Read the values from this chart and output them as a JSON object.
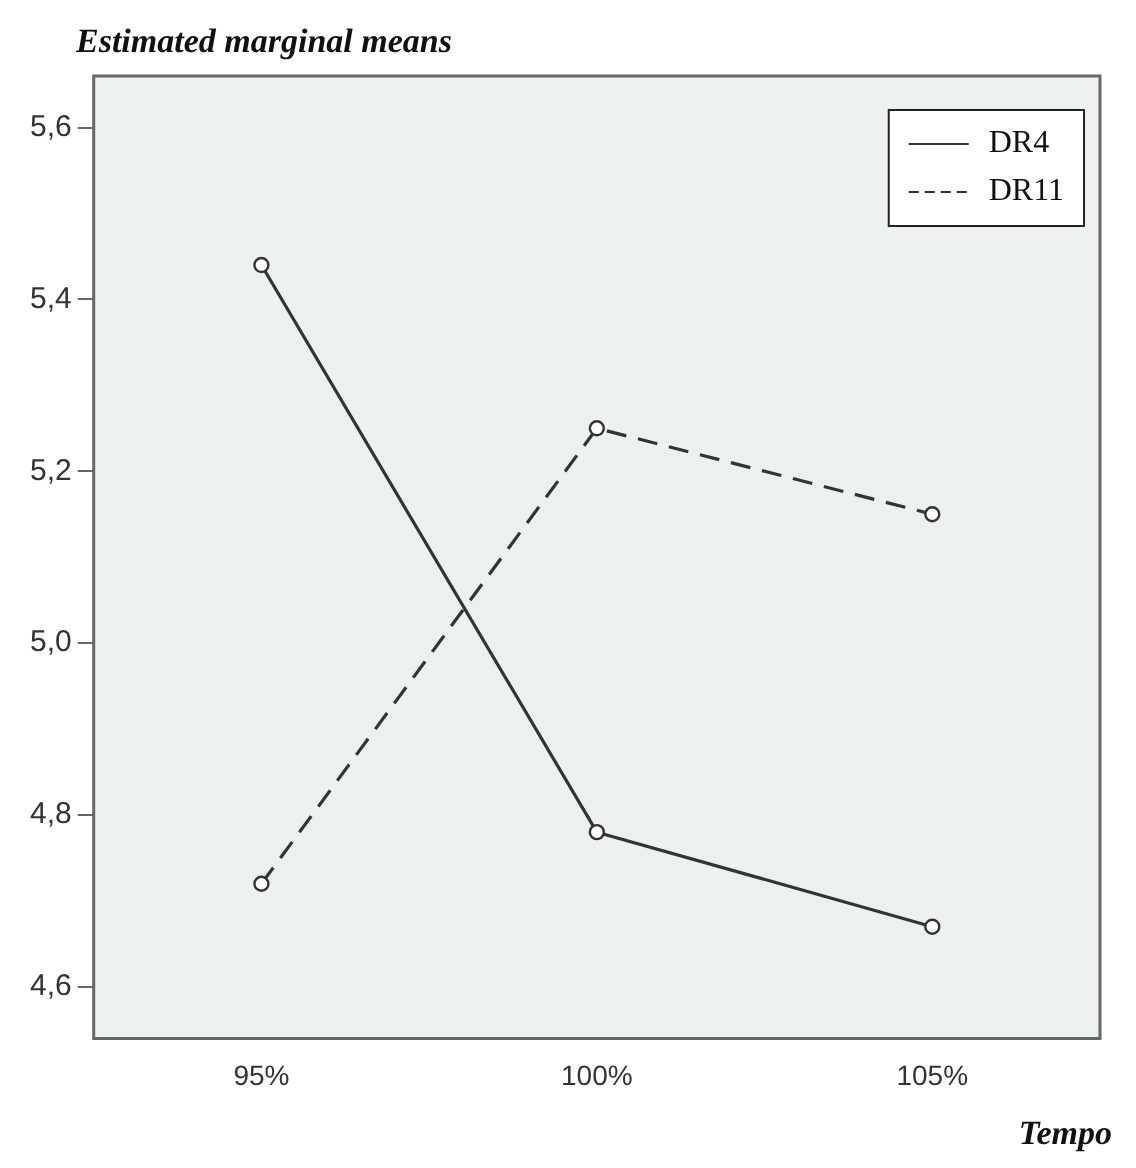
{
  "chart_data": {
    "type": "line",
    "title": "Estimated marginal means",
    "xlabel": "Tempo",
    "categories": [
      "95%",
      "100%",
      "105%"
    ],
    "series": [
      {
        "name": "DR4",
        "color": "#333333",
        "values": [
          5.44,
          4.78,
          4.67
        ],
        "line_style": "solid"
      },
      {
        "name": "DR11",
        "color": "#333333",
        "values": [
          4.72,
          5.25,
          5.15
        ],
        "line_style": "dashed"
      }
    ],
    "ylim": [
      4.54,
      5.66
    ],
    "yticks": [
      {
        "value": 4.6,
        "label": "4,6"
      },
      {
        "value": 4.8,
        "label": "4,8"
      },
      {
        "value": 5.0,
        "label": "5,0"
      },
      {
        "value": 5.2,
        "label": "5,2"
      },
      {
        "value": 5.4,
        "label": "5,4"
      },
      {
        "value": 5.6,
        "label": "5,6"
      }
    ],
    "marker": "circle",
    "legend": "top right",
    "grid": false
  }
}
